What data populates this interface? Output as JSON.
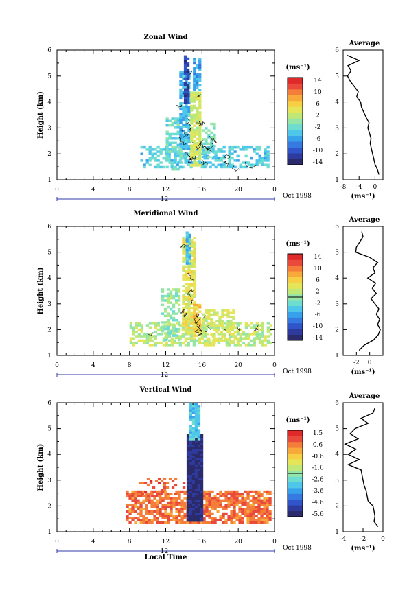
{
  "colormap": [
    "#2b2a6b",
    "#2e3a9c",
    "#2f55c8",
    "#3679e0",
    "#38a1ec",
    "#4fc7ea",
    "#6fdcd0",
    "#95e5a8",
    "#bfe877",
    "#e6e55a",
    "#f6cf44",
    "#f8a93c",
    "#f47d3a",
    "#e94a3c",
    "#e02a2a"
  ],
  "chart_data": [
    {
      "type": "heatmap",
      "title": "Zonal Wind",
      "ylabel": "Height (km)",
      "xlim": [
        0,
        24
      ],
      "ylim": [
        1,
        6
      ],
      "xticks": [
        "0",
        "4",
        "8",
        "12",
        "16",
        "20",
        "0"
      ],
      "yticks": [
        "1",
        "2",
        "3",
        "4",
        "5",
        "6"
      ],
      "date_bar": {
        "label": "12",
        "right_label": "Oct 1998"
      },
      "colorbar": {
        "unit": "(ms⁻¹)",
        "ticks": [
          "14",
          "10",
          "6",
          "2",
          "-2",
          "-6",
          "-10",
          "-14"
        ],
        "range": [
          -16,
          16
        ]
      },
      "field": [
        {
          "x0": 9.2,
          "x1": 23.2,
          "y0": 1.5,
          "y1": 2.3,
          "v": -3.5,
          "density": 0.55
        },
        {
          "x0": 12.0,
          "x1": 13.6,
          "y0": 1.4,
          "y1": 3.4,
          "v": -2.5,
          "density": 0.6
        },
        {
          "x0": 13.5,
          "x1": 14.7,
          "y0": 2.2,
          "y1": 5.2,
          "v": -5,
          "density": 0.8
        },
        {
          "x0": 14.0,
          "x1": 14.6,
          "y0": 4.0,
          "y1": 5.8,
          "v": -12,
          "density": 0.9
        },
        {
          "x0": 14.7,
          "x1": 15.9,
          "y0": 1.6,
          "y1": 4.4,
          "v": 3,
          "density": 0.85
        },
        {
          "x0": 15.0,
          "x1": 15.8,
          "y0": 4.5,
          "y1": 5.7,
          "v": -6,
          "density": 0.8
        },
        {
          "x0": 16.0,
          "x1": 17.5,
          "y0": 1.8,
          "y1": 3.2,
          "v": -1.5,
          "density": 0.5
        }
      ],
      "average_profile": {
        "title": "Average",
        "unit": "(ms⁻¹)",
        "xlim": [
          -8,
          2
        ],
        "xticks": [
          "-8",
          "-4",
          "0"
        ],
        "height": [
          1.2,
          1.4,
          1.6,
          1.8,
          2.0,
          2.2,
          2.4,
          2.6,
          2.8,
          3.0,
          3.2,
          3.4,
          3.6,
          3.8,
          4.0,
          4.2,
          4.4,
          4.6,
          4.8,
          5.0,
          5.2,
          5.4,
          5.6,
          5.8
        ],
        "speed": [
          1.0,
          0.6,
          0.0,
          -0.3,
          -0.6,
          -0.9,
          -1.2,
          -1.0,
          -1.4,
          -1.8,
          -1.5,
          -2.2,
          -2.8,
          -3.4,
          -3.6,
          -4.6,
          -4.2,
          -5.2,
          -6.2,
          -6.9,
          -6.0,
          -6.8,
          -4.0,
          -7.0
        ]
      }
    },
    {
      "type": "heatmap",
      "title": "Meridional Wind",
      "ylabel": "Height (km)",
      "xlim": [
        0,
        24
      ],
      "ylim": [
        1,
        6
      ],
      "xticks": [
        "0",
        "4",
        "8",
        "12",
        "16",
        "20",
        "0"
      ],
      "yticks": [
        "1",
        "2",
        "3",
        "4",
        "5",
        "6"
      ],
      "date_bar": {
        "label": "12",
        "right_label": "Oct 1998"
      },
      "colorbar": {
        "unit": "(ms⁻¹)",
        "ticks": [
          "14",
          "10",
          "6",
          "2",
          "-2",
          "-6",
          "-10",
          "-14"
        ],
        "range": [
          -16,
          16
        ]
      },
      "field": [
        {
          "x0": 8.0,
          "x1": 23.5,
          "y0": 1.4,
          "y1": 2.3,
          "v": 2,
          "density": 0.55
        },
        {
          "x0": 11.5,
          "x1": 13.5,
          "y0": 1.6,
          "y1": 3.6,
          "v": 0,
          "density": 0.5
        },
        {
          "x0": 13.8,
          "x1": 15.3,
          "y0": 2.0,
          "y1": 5.6,
          "v": 4,
          "density": 0.85
        },
        {
          "x0": 14.2,
          "x1": 14.7,
          "y0": 4.6,
          "y1": 5.8,
          "v": -5,
          "density": 0.8
        },
        {
          "x0": 15.0,
          "x1": 15.8,
          "y0": 1.8,
          "y1": 3.0,
          "v": 6,
          "density": 0.8
        },
        {
          "x0": 16.0,
          "x1": 19.5,
          "y0": 1.5,
          "y1": 2.8,
          "v": 3,
          "density": 0.5
        }
      ],
      "average_profile": {
        "title": "Average",
        "unit": "(ms⁻¹)",
        "xlim": [
          -4,
          2
        ],
        "xticks": [
          "-2",
          "0"
        ],
        "height": [
          1.2,
          1.4,
          1.6,
          1.8,
          2.0,
          2.2,
          2.4,
          2.6,
          2.8,
          3.0,
          3.2,
          3.4,
          3.6,
          3.8,
          4.0,
          4.2,
          4.4,
          4.6,
          4.8,
          5.0,
          5.2,
          5.4,
          5.6,
          5.8
        ],
        "speed": [
          -1.6,
          -0.8,
          0.6,
          1.3,
          1.6,
          1.2,
          1.5,
          1.0,
          1.4,
          0.8,
          0.2,
          1.0,
          0.4,
          0.9,
          -0.3,
          0.8,
          0.5,
          1.2,
          0.0,
          -2.1,
          -2.0,
          -1.5,
          -1.0,
          -1.2
        ]
      }
    },
    {
      "type": "heatmap",
      "title": "Vertical Wind",
      "ylabel": "Height (km)",
      "xlabel": "Local Time",
      "xlim": [
        0,
        24
      ],
      "ylim": [
        1,
        6
      ],
      "xticks": [
        "0",
        "4",
        "8",
        "12",
        "16",
        "20",
        "0"
      ],
      "yticks": [
        "1",
        "2",
        "3",
        "4",
        "5",
        "6"
      ],
      "date_bar": {
        "label": "12",
        "right_label": "Oct 1998"
      },
      "colorbar": {
        "unit": "(ms⁻¹)",
        "ticks": [
          "1.5",
          "0.6",
          "-0.6",
          "-1.6",
          "-2.6",
          "-3.6",
          "-4.6",
          "-5.6"
        ],
        "range": [
          -6,
          2
        ]
      },
      "field": [
        {
          "x0": 7.6,
          "x1": 23.5,
          "y0": 1.4,
          "y1": 2.6,
          "v": 0.8,
          "density": 0.75
        },
        {
          "x0": 9.0,
          "x1": 14.0,
          "y0": 2.4,
          "y1": 3.1,
          "v": 1.0,
          "density": 0.25
        },
        {
          "x0": 14.3,
          "x1": 16.0,
          "y0": 1.4,
          "y1": 4.8,
          "v": -5.6,
          "density": 1.0
        },
        {
          "x0": 14.6,
          "x1": 15.7,
          "y0": 4.6,
          "y1": 6.0,
          "v": -3.0,
          "density": 0.85
        }
      ],
      "average_profile": {
        "title": "Average",
        "unit": "(ms⁻¹)",
        "xlim": [
          -4,
          0
        ],
        "xticks": [
          "-4",
          "-2",
          "0"
        ],
        "height": [
          1.2,
          1.4,
          1.6,
          1.8,
          2.0,
          2.2,
          2.4,
          2.6,
          2.8,
          3.0,
          3.2,
          3.4,
          3.6,
          3.8,
          4.0,
          4.2,
          4.4,
          4.6,
          4.8,
          5.0,
          5.2,
          5.4,
          5.6,
          5.8
        ],
        "speed": [
          -0.5,
          -0.9,
          -0.8,
          -0.9,
          -1.0,
          -1.5,
          -1.6,
          -1.7,
          -1.9,
          -2.0,
          -2.1,
          -2.2,
          -3.5,
          -2.4,
          -3.5,
          -2.7,
          -3.8,
          -2.5,
          -3.3,
          -2.8,
          -1.5,
          -2.2,
          -1.0,
          -0.8
        ]
      }
    }
  ]
}
